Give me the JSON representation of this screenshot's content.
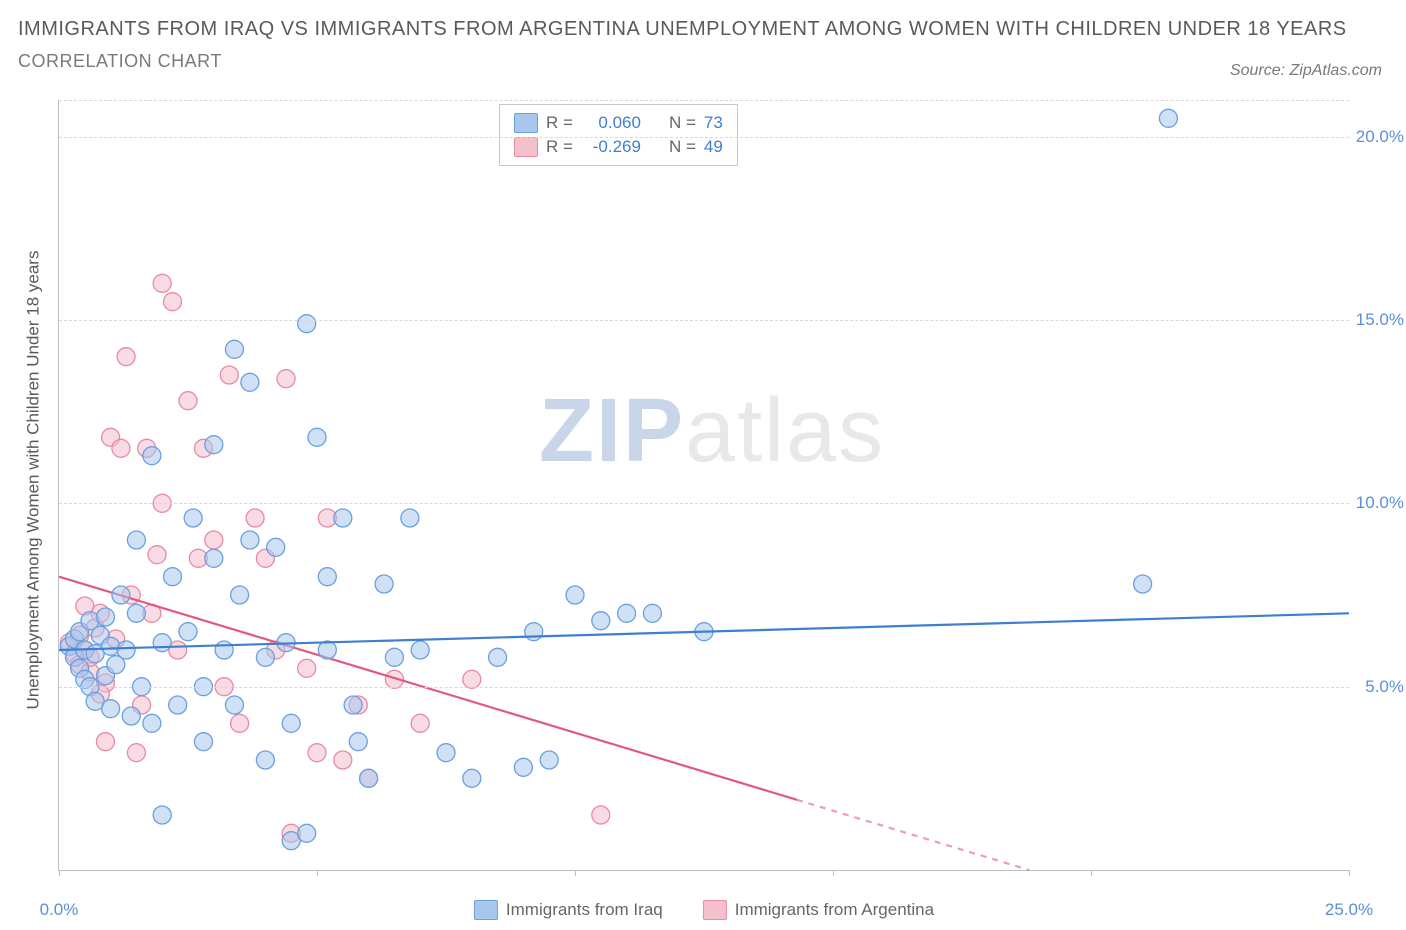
{
  "title_line1": "IMMIGRANTS FROM IRAQ VS IMMIGRANTS FROM ARGENTINA UNEMPLOYMENT AMONG WOMEN WITH CHILDREN UNDER 18 YEARS",
  "title_line2": "CORRELATION CHART",
  "source_label": "Source: ZipAtlas.com",
  "y_axis_label": "Unemployment Among Women with Children Under 18 years",
  "watermark": {
    "zip": "ZIP",
    "atlas": "atlas"
  },
  "chart": {
    "type": "scatter",
    "xlim": [
      0,
      25
    ],
    "ylim": [
      0,
      21
    ],
    "x_ticks": [
      0,
      5,
      10,
      15,
      20,
      25
    ],
    "x_tick_labels": {
      "0": "0.0%",
      "25": "25.0%"
    },
    "y_ticks": [
      5,
      10,
      15,
      20
    ],
    "y_tick_labels": {
      "5": "5.0%",
      "10": "10.0%",
      "15": "15.0%",
      "20": "20.0%"
    },
    "grid_color": "#d8d8d8",
    "axis_color": "#bfbfbf",
    "background_color": "#ffffff",
    "marker_radius": 9,
    "marker_opacity": 0.55,
    "line_width": 2.2,
    "series": {
      "iraq": {
        "label": "Immigrants from Iraq",
        "color_fill": "#a9c6ec",
        "color_stroke": "#6aa0e0",
        "line_color": "#3e7fd1",
        "R": "0.060",
        "N": "73",
        "trend": {
          "x1": 0,
          "y1": 6.0,
          "x2": 25,
          "y2": 7.0,
          "dash_after_x": null
        },
        "points": [
          [
            0.2,
            6.1
          ],
          [
            0.3,
            5.8
          ],
          [
            0.3,
            6.3
          ],
          [
            0.4,
            5.5
          ],
          [
            0.4,
            6.5
          ],
          [
            0.5,
            5.2
          ],
          [
            0.5,
            6.0
          ],
          [
            0.6,
            6.8
          ],
          [
            0.6,
            5.0
          ],
          [
            0.7,
            5.9
          ],
          [
            0.7,
            4.6
          ],
          [
            0.8,
            6.4
          ],
          [
            0.9,
            5.3
          ],
          [
            0.9,
            6.9
          ],
          [
            1.0,
            4.4
          ],
          [
            1.0,
            6.1
          ],
          [
            1.1,
            5.6
          ],
          [
            1.2,
            7.5
          ],
          [
            1.3,
            6.0
          ],
          [
            1.4,
            4.2
          ],
          [
            1.5,
            9.0
          ],
          [
            1.5,
            7.0
          ],
          [
            1.6,
            5.0
          ],
          [
            1.8,
            4.0
          ],
          [
            1.8,
            11.3
          ],
          [
            2.0,
            6.2
          ],
          [
            2.0,
            1.5
          ],
          [
            2.2,
            8.0
          ],
          [
            2.3,
            4.5
          ],
          [
            2.5,
            6.5
          ],
          [
            2.6,
            9.6
          ],
          [
            2.8,
            5.0
          ],
          [
            2.8,
            3.5
          ],
          [
            3.0,
            8.5
          ],
          [
            3.0,
            11.6
          ],
          [
            3.2,
            6.0
          ],
          [
            3.4,
            4.5
          ],
          [
            3.4,
            14.2
          ],
          [
            3.5,
            7.5
          ],
          [
            3.7,
            9.0
          ],
          [
            4.0,
            5.8
          ],
          [
            4.0,
            3.0
          ],
          [
            4.2,
            8.8
          ],
          [
            4.4,
            6.2
          ],
          [
            4.5,
            4.0
          ],
          [
            4.5,
            0.8
          ],
          [
            4.8,
            1.0
          ],
          [
            5.0,
            11.8
          ],
          [
            5.2,
            8.0
          ],
          [
            5.2,
            6.0
          ],
          [
            5.5,
            9.6
          ],
          [
            5.7,
            4.5
          ],
          [
            5.8,
            3.5
          ],
          [
            6.0,
            2.5
          ],
          [
            6.3,
            7.8
          ],
          [
            6.5,
            5.8
          ],
          [
            6.8,
            9.6
          ],
          [
            7.0,
            6.0
          ],
          [
            7.5,
            3.2
          ],
          [
            8.0,
            2.5
          ],
          [
            8.5,
            5.8
          ],
          [
            9.0,
            2.8
          ],
          [
            9.2,
            6.5
          ],
          [
            9.5,
            3.0
          ],
          [
            10.0,
            7.5
          ],
          [
            10.5,
            6.8
          ],
          [
            11.0,
            7.0
          ],
          [
            11.5,
            7.0
          ],
          [
            12.5,
            6.5
          ],
          [
            21.0,
            7.8
          ],
          [
            21.5,
            20.5
          ],
          [
            4.8,
            14.9
          ],
          [
            3.7,
            13.3
          ]
        ]
      },
      "argentina": {
        "label": "Immigrants from Argentina",
        "color_fill": "#f4c0cc",
        "color_stroke": "#e88aa3",
        "line_color": "#e05a80",
        "R": "-0.269",
        "N": "49",
        "trend": {
          "x1": 0,
          "y1": 8.0,
          "x2": 18.8,
          "y2": 0,
          "dash_after_x": 14.3
        },
        "points": [
          [
            0.2,
            6.2
          ],
          [
            0.3,
            5.9
          ],
          [
            0.4,
            6.4
          ],
          [
            0.4,
            5.6
          ],
          [
            0.5,
            6.0
          ],
          [
            0.5,
            7.2
          ],
          [
            0.6,
            5.4
          ],
          [
            0.7,
            6.6
          ],
          [
            0.8,
            7.0
          ],
          [
            0.9,
            5.1
          ],
          [
            1.0,
            11.8
          ],
          [
            1.1,
            6.3
          ],
          [
            1.2,
            11.5
          ],
          [
            1.3,
            14.0
          ],
          [
            1.4,
            7.5
          ],
          [
            1.5,
            3.2
          ],
          [
            1.8,
            7.0
          ],
          [
            1.9,
            8.6
          ],
          [
            2.0,
            16.0
          ],
          [
            2.2,
            15.5
          ],
          [
            2.3,
            6.0
          ],
          [
            2.5,
            12.8
          ],
          [
            2.7,
            8.5
          ],
          [
            2.8,
            11.5
          ],
          [
            3.0,
            9.0
          ],
          [
            3.2,
            5.0
          ],
          [
            3.3,
            13.5
          ],
          [
            3.5,
            4.0
          ],
          [
            3.8,
            9.6
          ],
          [
            4.0,
            8.5
          ],
          [
            4.2,
            6.0
          ],
          [
            4.4,
            13.4
          ],
          [
            4.5,
            1.0
          ],
          [
            4.8,
            5.5
          ],
          [
            5.0,
            3.2
          ],
          [
            5.2,
            9.6
          ],
          [
            5.5,
            3.0
          ],
          [
            5.8,
            4.5
          ],
          [
            6.0,
            2.5
          ],
          [
            6.5,
            5.2
          ],
          [
            7.0,
            4.0
          ],
          [
            8.0,
            5.2
          ],
          [
            10.5,
            1.5
          ],
          [
            1.6,
            4.5
          ],
          [
            2.0,
            10.0
          ],
          [
            0.9,
            3.5
          ],
          [
            1.7,
            11.5
          ],
          [
            0.6,
            5.8
          ],
          [
            0.8,
            4.8
          ]
        ]
      }
    },
    "legend_top": {
      "r_label": "R =",
      "n_label": "N =",
      "value_color": "#3e7fd1"
    }
  }
}
